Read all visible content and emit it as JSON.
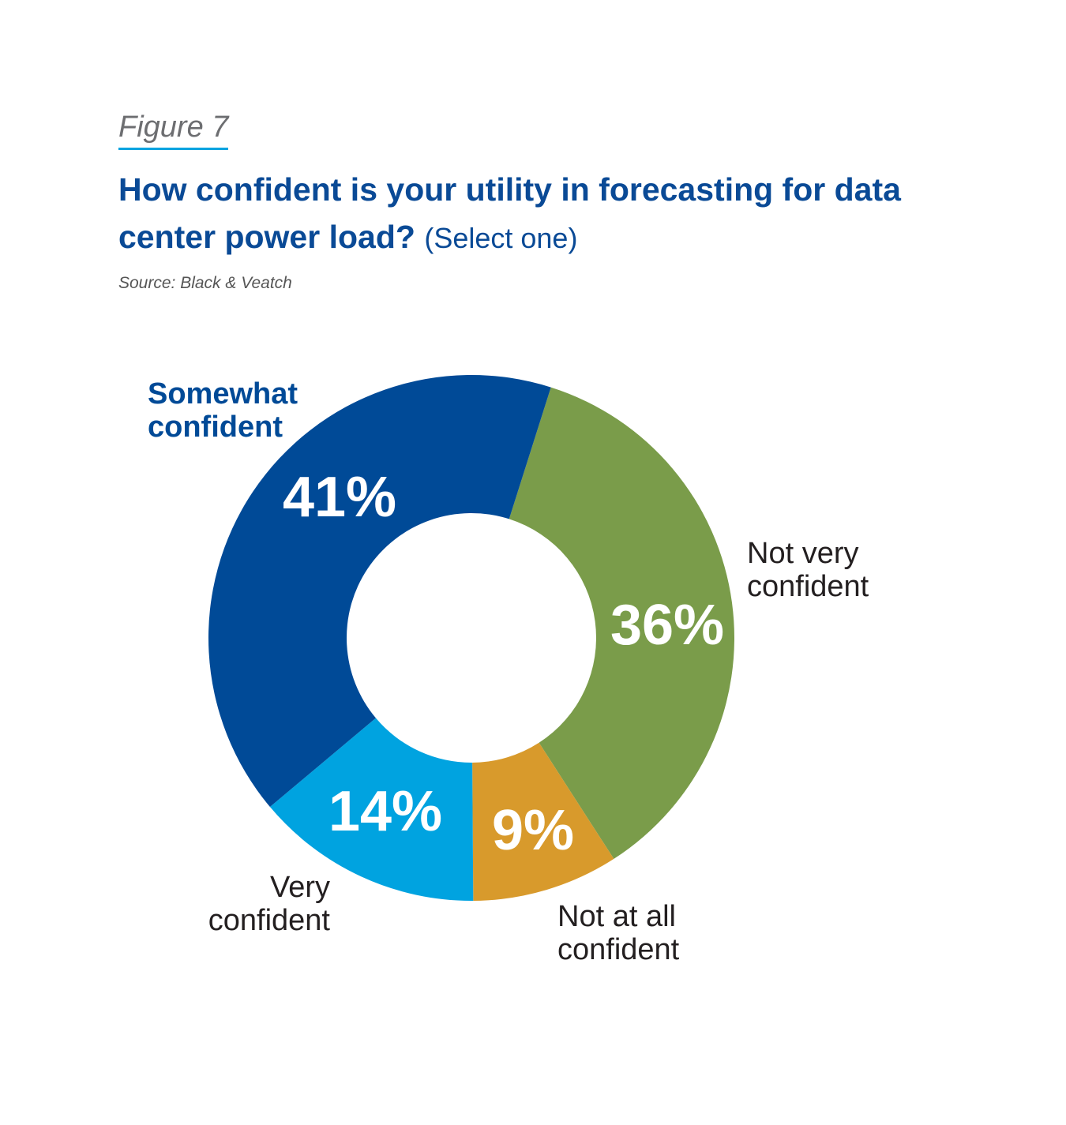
{
  "figure_label": "Figure 7",
  "source": "Source: Black & Veatch",
  "chart_data": {
    "type": "donut",
    "title": "How confident is your utility in forecasting for data center power load?",
    "subtitle": "(Select one)",
    "categories": [
      "Not very confident",
      "Not at all confident",
      "Very confident",
      "Somewhat confident"
    ],
    "values": [
      36,
      9,
      14,
      41
    ],
    "value_labels": [
      "36%",
      "9%",
      "14%",
      "41%"
    ],
    "colors": [
      "#7a9c4a",
      "#d89a2c",
      "#00a3e0",
      "#004a97"
    ]
  }
}
